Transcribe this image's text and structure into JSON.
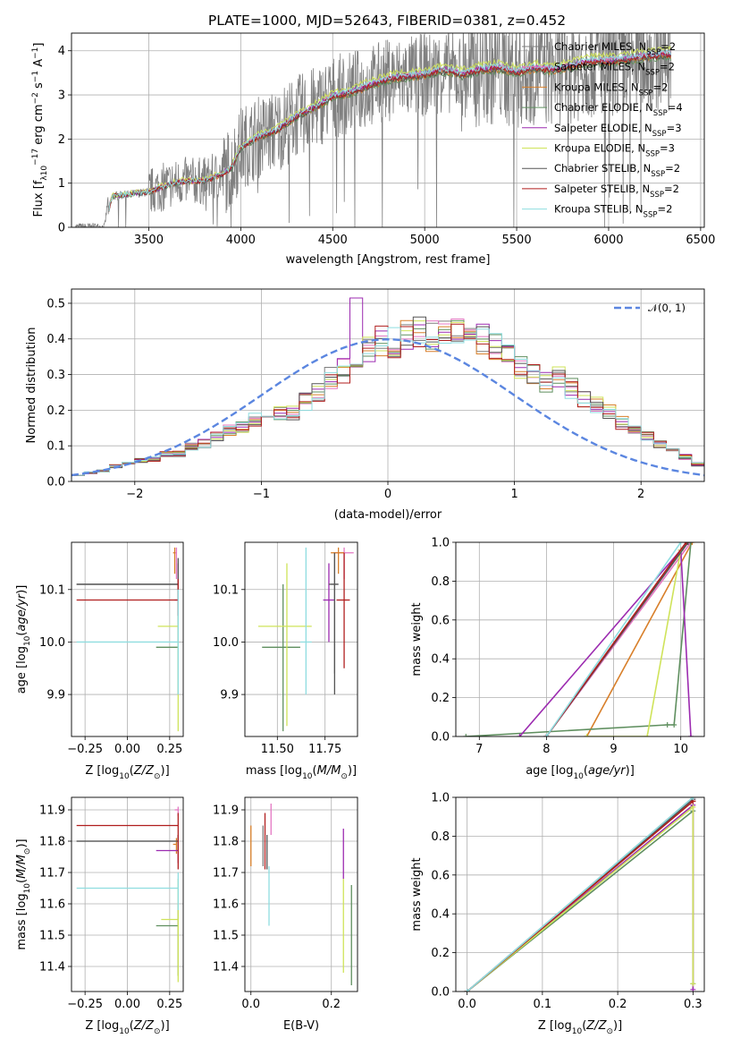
{
  "title": "PLATE=1000, MJD=52643, FIBERID=0381, z=0.452",
  "colors": {
    "Chabrier MILES": "#7f7f7f",
    "Salpeter MILES": "#e377c2",
    "Kroupa MILES": "#d87f2a",
    "Chabrier ELODIE": "#5f8f5f",
    "Salpeter ELODIE": "#9c2bb0",
    "Kroupa ELODIE": "#cfe35a",
    "Chabrier STELIB": "#555555",
    "Salpeter STELIB": "#b01e1e",
    "Kroupa STELIB": "#8fdde0",
    "normal": "#5b86e0",
    "data": "#808080"
  },
  "chart_data": [
    {
      "panel": "spectrum",
      "type": "line",
      "xlabel": "wavelength [Angstrom, rest frame]",
      "ylabel_parts": [
        "Flux [f",
        "λ",
        "10",
        "−17",
        " erg cm",
        "−2",
        " s",
        "−1",
        " A",
        "−1",
        "]"
      ],
      "xlim": [
        3080,
        6520
      ],
      "ylim": [
        0,
        4.4
      ],
      "xticks": [
        3500,
        4000,
        4500,
        5000,
        5500,
        6000,
        6500
      ],
      "yticks": [
        0,
        1,
        2,
        3,
        4
      ],
      "legend": [
        {
          "base": "Chabrier MILES, N",
          "sub": "SSP",
          "tail": "=2"
        },
        {
          "base": "Salpeter MILES, N",
          "sub": "SSP",
          "tail": "=2"
        },
        {
          "base": "Kroupa MILES, N",
          "sub": "SSP",
          "tail": "=2"
        },
        {
          "base": "Chabrier ELODIE, N",
          "sub": "SSP",
          "tail": "=4"
        },
        {
          "base": "Salpeter ELODIE, N",
          "sub": "SSP",
          "tail": "=3"
        },
        {
          "base": "Kroupa ELODIE, N",
          "sub": "SSP",
          "tail": "=3"
        },
        {
          "base": "Chabrier STELIB, N",
          "sub": "SSP",
          "tail": "=2"
        },
        {
          "base": "Salpeter STELIB, N",
          "sub": "SSP",
          "tail": "=2"
        },
        {
          "base": "Kroupa STELIB, N",
          "sub": "SSP",
          "tail": "=2"
        }
      ],
      "continuum": {
        "x": [
          3260,
          3300,
          3400,
          3500,
          3600,
          3700,
          3800,
          3900,
          3950,
          4000,
          4100,
          4200,
          4300,
          4400,
          4500,
          4600,
          4700,
          4800,
          4900,
          5000,
          5100,
          5200,
          5300,
          5400,
          5500,
          5600,
          5700,
          5800,
          5900,
          6000,
          6100,
          6200,
          6300,
          6340
        ],
        "y": [
          0.0,
          0.7,
          0.75,
          0.8,
          0.95,
          1.05,
          1.05,
          1.2,
          1.35,
          1.8,
          2.05,
          2.2,
          2.5,
          2.7,
          2.95,
          3.05,
          3.2,
          3.35,
          3.4,
          3.45,
          3.55,
          3.45,
          3.55,
          3.6,
          3.5,
          3.6,
          3.55,
          3.65,
          3.75,
          3.75,
          3.8,
          3.85,
          3.9,
          3.9
        ]
      }
    },
    {
      "panel": "residuals",
      "type": "histogram",
      "xlabel": "(data-model)/error",
      "ylabel": "Normed distribution",
      "xlim": [
        -2.5,
        2.5
      ],
      "ylim": [
        0,
        0.54
      ],
      "xticks": [
        -2,
        -1,
        0,
        1,
        2
      ],
      "yticks": [
        0.0,
        0.1,
        0.2,
        0.3,
        0.4,
        0.5
      ],
      "legend": "𝒩(0, 1)",
      "bin_width": 0.1,
      "bin_start": -2.5,
      "envelope": [
        0.02,
        0.025,
        0.03,
        0.045,
        0.05,
        0.06,
        0.065,
        0.08,
        0.08,
        0.1,
        0.11,
        0.13,
        0.15,
        0.16,
        0.18,
        0.19,
        0.2,
        0.2,
        0.23,
        0.26,
        0.3,
        0.32,
        0.35,
        0.38,
        0.41,
        0.4,
        0.42,
        0.43,
        0.42,
        0.44,
        0.45,
        0.43,
        0.41,
        0.39,
        0.36,
        0.33,
        0.31,
        0.29,
        0.3,
        0.27,
        0.24,
        0.22,
        0.2,
        0.17,
        0.15,
        0.13,
        0.11,
        0.09,
        0.07,
        0.05
      ]
    },
    {
      "panel": "age-vs-Z",
      "type": "scatter",
      "xlabel_parts": [
        "Z [log",
        "10",
        "(",
        "Z/Z",
        "⊙",
        ")]"
      ],
      "ylabel_parts": [
        "age  [log",
        "10",
        "(",
        "age/yr",
        ")]"
      ],
      "xlim": [
        -0.33,
        0.33
      ],
      "ylim": [
        9.82,
        10.19
      ],
      "xticks": [
        -0.25,
        0.0,
        0.25
      ],
      "yticks": [
        9.9,
        10.0,
        10.1
      ],
      "points": [
        {
          "m": "Chabrier MILES",
          "x": 0.3,
          "y": 10.11,
          "xlo": -0.3,
          "ylo": 10.11,
          "yhi": 10.11
        },
        {
          "m": "Salpeter MILES",
          "x": 0.29,
          "y": 10.17,
          "xlo": 0.28,
          "ylo": 10.12,
          "yhi": 10.18
        },
        {
          "m": "Kroupa MILES",
          "x": 0.28,
          "y": 10.17,
          "xlo": 0.27,
          "ylo": 10.13,
          "yhi": 10.18
        },
        {
          "m": "Chabrier ELODIE",
          "x": 0.3,
          "y": 9.99,
          "xlo": 0.17,
          "ylo": 9.9,
          "yhi": 10.05
        },
        {
          "m": "Salpeter ELODIE",
          "x": 0.3,
          "y": 10.08,
          "xlo": 0.28,
          "ylo": 10.0,
          "yhi": 10.15
        },
        {
          "m": "Kroupa ELODIE",
          "x": 0.3,
          "y": 10.03,
          "xlo": 0.18,
          "ylo": 9.83,
          "yhi": 10.1
        },
        {
          "m": "Chabrier STELIB",
          "x": 0.3,
          "y": 10.11,
          "xlo": -0.3,
          "ylo": 10.05,
          "yhi": 10.16
        },
        {
          "m": "Salpeter STELIB",
          "x": 0.3,
          "y": 10.08,
          "xlo": -0.3,
          "ylo": 10.05,
          "yhi": 10.12
        },
        {
          "m": "Kroupa STELIB",
          "x": 0.3,
          "y": 10.0,
          "xlo": -0.3,
          "ylo": 9.9,
          "yhi": 10.1
        }
      ]
    },
    {
      "panel": "age-vs-mass",
      "type": "scatter",
      "xlabel_parts": [
        "mass [log",
        "10",
        "(",
        "M/M",
        "⊙",
        ")]"
      ],
      "xlim": [
        11.33,
        11.92
      ],
      "ylim": [
        9.82,
        10.19
      ],
      "xticks": [
        11.5,
        11.75
      ],
      "yticks": [
        9.9,
        10.0,
        10.1
      ],
      "points": [
        {
          "m": "Chabrier MILES",
          "x": 11.8,
          "y": 10.11,
          "xlo": 11.78,
          "xhi": 11.82,
          "ylo": 9.94,
          "yhi": 10.17
        },
        {
          "m": "Salpeter MILES",
          "x": 11.85,
          "y": 10.17,
          "xlo": 11.8,
          "xhi": 11.9,
          "ylo": 10.12,
          "yhi": 10.18
        },
        {
          "m": "Kroupa MILES",
          "x": 11.82,
          "y": 10.17,
          "xlo": 11.78,
          "xhi": 11.85,
          "ylo": 10.13,
          "yhi": 10.18
        },
        {
          "m": "Chabrier ELODIE",
          "x": 11.53,
          "y": 9.99,
          "xlo": 11.42,
          "xhi": 11.62,
          "ylo": 9.83,
          "yhi": 10.11
        },
        {
          "m": "Salpeter ELODIE",
          "x": 11.77,
          "y": 10.08,
          "xlo": 11.74,
          "xhi": 11.8,
          "ylo": 10.0,
          "yhi": 10.15
        },
        {
          "m": "Kroupa ELODIE",
          "x": 11.55,
          "y": 10.03,
          "xlo": 11.4,
          "xhi": 11.68,
          "ylo": 9.84,
          "yhi": 10.15
        },
        {
          "m": "Chabrier STELIB",
          "x": 11.8,
          "y": 10.11,
          "xlo": 11.77,
          "xhi": 11.82,
          "ylo": 9.9,
          "yhi": 10.17
        },
        {
          "m": "Salpeter STELIB",
          "x": 11.85,
          "y": 10.08,
          "xlo": 11.81,
          "xhi": 11.88,
          "ylo": 9.95,
          "yhi": 10.17
        },
        {
          "m": "Kroupa STELIB",
          "x": 11.65,
          "y": 10.0,
          "xlo": 11.62,
          "xhi": 11.68,
          "ylo": 9.9,
          "yhi": 10.18
        }
      ]
    },
    {
      "panel": "mass-weight-vs-age",
      "type": "line",
      "xlabel_parts": [
        "age  [log",
        "10",
        "(",
        "age/yr",
        ")]"
      ],
      "ylabel": "mass weight",
      "xlim": [
        6.65,
        10.35
      ],
      "ylim": [
        0,
        1
      ],
      "xticks": [
        7,
        8,
        9,
        10
      ],
      "yticks": [
        0.0,
        0.2,
        0.4,
        0.6,
        0.8,
        1.0
      ],
      "series": [
        {
          "m": "Chabrier MILES",
          "x": [
            8.0,
            10.1
          ],
          "y": [
            0.0,
            1.0
          ]
        },
        {
          "m": "Salpeter MILES",
          "x": [
            8.0,
            10.15
          ],
          "y": [
            0.0,
            1.0
          ]
        },
        {
          "m": "Kroupa MILES",
          "x": [
            8.6,
            10.17
          ],
          "y": [
            0.0,
            1.0
          ]
        },
        {
          "m": "Chabrier ELODIE",
          "x": [
            6.8,
            9.8,
            9.9,
            10.15
          ],
          "y": [
            0.0,
            0.06,
            0.06,
            1.0
          ]
        },
        {
          "m": "Salpeter ELODIE",
          "x": [
            7.6,
            10.0,
            10.15
          ],
          "y": [
            0.0,
            0.96,
            0.0
          ]
        },
        {
          "m": "Kroupa ELODIE",
          "x": [
            8.6,
            9.5,
            10.0
          ],
          "y": [
            0.0,
            0.0,
            0.96
          ]
        },
        {
          "m": "Chabrier STELIB",
          "x": [
            8.0,
            10.11
          ],
          "y": [
            0.0,
            1.0
          ]
        },
        {
          "m": "Salpeter STELIB",
          "x": [
            8.0,
            10.08
          ],
          "y": [
            0.0,
            1.0
          ]
        },
        {
          "m": "Kroupa STELIB",
          "x": [
            8.0,
            10.0
          ],
          "y": [
            0.0,
            1.0
          ]
        }
      ]
    },
    {
      "panel": "mass-vs-Z",
      "type": "scatter",
      "xlabel_parts": [
        "Z [log",
        "10",
        "(",
        "Z/Z",
        "⊙",
        ")]"
      ],
      "ylabel_parts": [
        "mass [log",
        "10",
        "(",
        "M/M",
        "⊙",
        ")]"
      ],
      "xlim": [
        -0.33,
        0.33
      ],
      "ylim": [
        11.32,
        11.94
      ],
      "xticks": [
        -0.25,
        0.0,
        0.25
      ],
      "yticks": [
        11.4,
        11.5,
        11.6,
        11.7,
        11.8,
        11.9
      ],
      "points": [
        {
          "m": "Chabrier MILES",
          "x": 0.3,
          "y": 11.8,
          "xlo": -0.3,
          "ylo": 11.78,
          "yhi": 11.82
        },
        {
          "m": "Salpeter MILES",
          "x": 0.3,
          "y": 11.9,
          "xlo": 0.28,
          "ylo": 11.88,
          "yhi": 11.91
        },
        {
          "m": "Kroupa MILES",
          "x": 0.29,
          "y": 11.79,
          "xlo": 0.27,
          "ylo": 11.76,
          "yhi": 11.81
        },
        {
          "m": "Chabrier ELODIE",
          "x": 0.3,
          "y": 11.53,
          "xlo": 0.17,
          "ylo": 11.37,
          "yhi": 11.6
        },
        {
          "m": "Salpeter ELODIE",
          "x": 0.3,
          "y": 11.77,
          "xlo": 0.17,
          "ylo": 11.73,
          "yhi": 11.82
        },
        {
          "m": "Kroupa ELODIE",
          "x": 0.3,
          "y": 11.55,
          "xlo": 0.2,
          "ylo": 11.35,
          "yhi": 11.68
        },
        {
          "m": "Chabrier STELIB",
          "x": 0.3,
          "y": 11.8,
          "xlo": -0.3,
          "ylo": 11.77,
          "yhi": 11.82
        },
        {
          "m": "Salpeter STELIB",
          "x": 0.3,
          "y": 11.85,
          "xlo": -0.3,
          "ylo": 11.71,
          "yhi": 11.89
        },
        {
          "m": "Kroupa STELIB",
          "x": 0.3,
          "y": 11.65,
          "xlo": -0.3,
          "ylo": 11.58,
          "yhi": 11.7
        }
      ]
    },
    {
      "panel": "mass-vs-EBV",
      "type": "scatter",
      "xlabel": "E(B-V)",
      "xlim": [
        -0.015,
        0.265
      ],
      "ylim": [
        11.32,
        11.94
      ],
      "xticks": [
        0.0,
        0.2
      ],
      "yticks": [
        11.4,
        11.5,
        11.6,
        11.7,
        11.8,
        11.9
      ],
      "points": [
        {
          "m": "Chabrier MILES",
          "x": 0.03,
          "y": 11.8,
          "ylo": 11.72,
          "yhi": 11.85
        },
        {
          "m": "Salpeter MILES",
          "x": 0.05,
          "y": 11.9,
          "ylo": 11.82,
          "yhi": 11.92
        },
        {
          "m": "Kroupa MILES",
          "x": 0.0,
          "y": 11.79,
          "ylo": 11.72,
          "yhi": 11.85
        },
        {
          "m": "Chabrier ELODIE",
          "x": 0.25,
          "y": 11.53,
          "ylo": 11.34,
          "yhi": 11.66
        },
        {
          "m": "Salpeter ELODIE",
          "x": 0.23,
          "y": 11.77,
          "ylo": 11.68,
          "yhi": 11.84
        },
        {
          "m": "Kroupa ELODIE",
          "x": 0.23,
          "y": 11.55,
          "ylo": 11.38,
          "yhi": 11.68
        },
        {
          "m": "Chabrier STELIB",
          "x": 0.04,
          "y": 11.8,
          "ylo": 11.71,
          "yhi": 11.82
        },
        {
          "m": "Salpeter STELIB",
          "x": 0.035,
          "y": 11.85,
          "ylo": 11.71,
          "yhi": 11.89
        },
        {
          "m": "Kroupa STELIB",
          "x": 0.045,
          "y": 11.65,
          "ylo": 11.53,
          "yhi": 11.72
        }
      ]
    },
    {
      "panel": "mass-weight-vs-Z",
      "type": "line",
      "xlabel_parts": [
        "Z [log",
        "10",
        "(",
        "Z/Z",
        "⊙",
        ")]"
      ],
      "ylabel": "mass weight",
      "xlim": [
        -0.015,
        0.315
      ],
      "ylim": [
        0,
        1
      ],
      "xticks": [
        0.0,
        0.1,
        0.2,
        0.3
      ],
      "yticks": [
        0.0,
        0.2,
        0.4,
        0.6,
        0.8,
        1.0
      ],
      "series": [
        {
          "m": "Chabrier MILES",
          "x": [
            0.0,
            0.3
          ],
          "y": [
            0.0,
            1.0
          ]
        },
        {
          "m": "Salpeter MILES",
          "x": [
            0.0,
            0.3
          ],
          "y": [
            0.0,
            0.99
          ]
        },
        {
          "m": "Kroupa MILES",
          "x": [
            0.0,
            0.3
          ],
          "y": [
            0.0,
            0.98
          ]
        },
        {
          "m": "Chabrier ELODIE",
          "x": [
            0.0,
            0.3,
            0.3
          ],
          "y": [
            0.0,
            0.93,
            0.04
          ]
        },
        {
          "m": "Salpeter ELODIE",
          "x": [
            0.0,
            0.3,
            0.3
          ],
          "y": [
            0.0,
            0.96,
            0.01
          ]
        },
        {
          "m": "Kroupa ELODIE",
          "x": [
            0.0,
            0.3,
            0.3
          ],
          "y": [
            0.0,
            0.95,
            0.04
          ]
        },
        {
          "m": "Chabrier STELIB",
          "x": [
            0.0,
            0.3
          ],
          "y": [
            0.0,
            0.99
          ]
        },
        {
          "m": "Salpeter STELIB",
          "x": [
            0.0,
            0.3
          ],
          "y": [
            0.0,
            0.98
          ]
        },
        {
          "m": "Kroupa STELIB",
          "x": [
            0.0,
            0.3
          ],
          "y": [
            0.0,
            1.0
          ]
        }
      ]
    }
  ]
}
